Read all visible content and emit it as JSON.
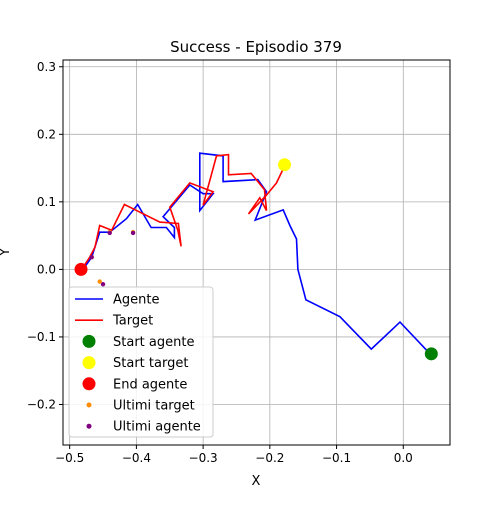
{
  "chart_data": {
    "type": "line",
    "title": "Success - Episodio 379",
    "xlabel": "X",
    "ylabel": "Y",
    "xlim": [
      -0.51,
      0.07
    ],
    "ylim": [
      -0.26,
      0.31
    ],
    "x_ticks": [
      -0.5,
      -0.4,
      -0.3,
      -0.2,
      -0.1,
      0.0
    ],
    "x_tick_labels": [
      "−0.5",
      "−0.4",
      "−0.3",
      "−0.2",
      "−0.1",
      "0.0"
    ],
    "y_ticks": [
      -0.2,
      -0.1,
      0.0,
      0.1,
      0.2,
      0.3
    ],
    "y_tick_labels": [
      "−0.2",
      "−0.1",
      "0.0",
      "0.1",
      "0.2",
      "0.3"
    ],
    "grid": true,
    "legend_position": "lower-left",
    "series": [
      {
        "name": "Agente",
        "kind": "line",
        "color": "#0000ff",
        "points": [
          [
            0.04,
            -0.125
          ],
          [
            -0.005,
            -0.078
          ],
          [
            -0.048,
            -0.118
          ],
          [
            -0.095,
            -0.07
          ],
          [
            -0.146,
            -0.045
          ],
          [
            -0.158,
            0.0
          ],
          [
            -0.16,
            0.045
          ],
          [
            -0.17,
            0.065
          ],
          [
            -0.18,
            0.088
          ],
          [
            -0.222,
            0.073
          ],
          [
            -0.205,
            0.115
          ],
          [
            -0.218,
            0.133
          ],
          [
            -0.27,
            0.13
          ],
          [
            -0.27,
            0.168
          ],
          [
            -0.305,
            0.172
          ],
          [
            -0.305,
            0.087
          ],
          [
            -0.285,
            0.112
          ],
          [
            -0.3,
            0.112
          ],
          [
            -0.32,
            0.125
          ],
          [
            -0.36,
            0.078
          ],
          [
            -0.343,
            0.062
          ],
          [
            -0.343,
            0.047
          ],
          [
            -0.355,
            0.062
          ],
          [
            -0.378,
            0.062
          ],
          [
            -0.398,
            0.096
          ],
          [
            -0.415,
            0.075
          ],
          [
            -0.44,
            0.055
          ],
          [
            -0.455,
            0.055
          ],
          [
            -0.467,
            0.018
          ],
          [
            -0.478,
            0.003
          ],
          [
            -0.483,
            0.0
          ]
        ]
      },
      {
        "name": "Target",
        "kind": "line",
        "color": "#ff0000",
        "points": [
          [
            -0.177,
            0.155
          ],
          [
            -0.19,
            0.128
          ],
          [
            -0.205,
            0.11
          ],
          [
            -0.232,
            0.082
          ],
          [
            -0.215,
            0.106
          ],
          [
            -0.205,
            0.087
          ],
          [
            -0.208,
            0.118
          ],
          [
            -0.228,
            0.142
          ],
          [
            -0.262,
            0.14
          ],
          [
            -0.262,
            0.17
          ],
          [
            -0.28,
            0.168
          ],
          [
            -0.3,
            0.095
          ],
          [
            -0.285,
            0.115
          ],
          [
            -0.32,
            0.128
          ],
          [
            -0.35,
            0.092
          ],
          [
            -0.338,
            0.058
          ],
          [
            -0.333,
            0.034
          ],
          [
            -0.337,
            0.068
          ],
          [
            -0.365,
            0.07
          ],
          [
            -0.418,
            0.096
          ],
          [
            -0.437,
            0.058
          ],
          [
            -0.455,
            0.065
          ],
          [
            -0.462,
            0.033
          ],
          [
            -0.47,
            0.018
          ],
          [
            -0.48,
            0.003
          ],
          [
            -0.485,
            0.0
          ]
        ]
      },
      {
        "name": "Start agente",
        "kind": "marker",
        "color": "#008000",
        "points": [
          [
            0.042,
            -0.125
          ]
        ]
      },
      {
        "name": "Start target",
        "kind": "marker",
        "color": "#ffff00",
        "points": [
          [
            -0.178,
            0.155
          ]
        ]
      },
      {
        "name": "End agente",
        "kind": "marker",
        "color": "#ff0000",
        "points": [
          [
            -0.483,
            0.0
          ]
        ]
      },
      {
        "name": "Ultimi target",
        "kind": "dots",
        "color": "#ff8c00",
        "points": [
          [
            -0.467,
            0.018
          ],
          [
            -0.455,
            -0.018
          ],
          [
            -0.44,
            0.055
          ],
          [
            -0.405,
            0.055
          ]
        ]
      },
      {
        "name": "Ultimi agente",
        "kind": "dots",
        "color": "#800080",
        "points": [
          [
            -0.467,
            0.018
          ],
          [
            -0.45,
            -0.022
          ],
          [
            -0.44,
            0.054
          ],
          [
            -0.405,
            0.054
          ]
        ]
      }
    ]
  }
}
